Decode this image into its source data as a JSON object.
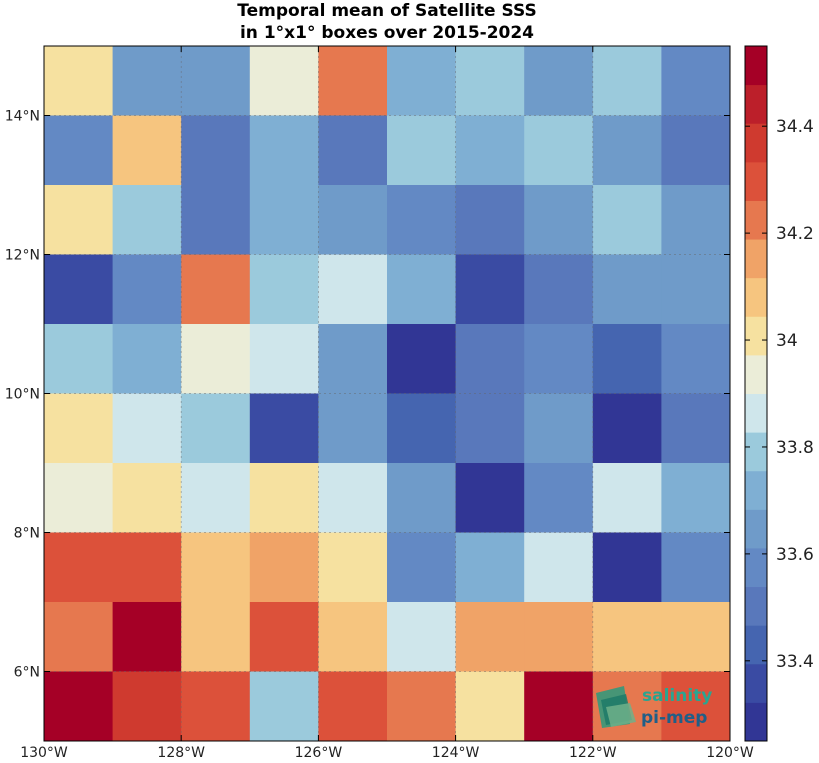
{
  "chart_data": {
    "type": "heatmap",
    "title_lines": [
      "Temporal mean of Satellite SSS",
      "in 1°x1° boxes over 2015-2024"
    ],
    "x_range": [
      -130,
      -120
    ],
    "y_range": [
      5,
      15
    ],
    "x_ticks": [
      {
        "value": -130,
        "label": "130°W"
      },
      {
        "value": -128,
        "label": "128°W"
      },
      {
        "value": -126,
        "label": "126°W"
      },
      {
        "value": -124,
        "label": "124°W"
      },
      {
        "value": -122,
        "label": "122°W"
      },
      {
        "value": -120,
        "label": "120°W"
      }
    ],
    "y_ticks": [
      {
        "value": 6,
        "label": "6°N"
      },
      {
        "value": 8,
        "label": "8°N"
      },
      {
        "value": 10,
        "label": "10°N"
      },
      {
        "value": 12,
        "label": "12°N"
      },
      {
        "value": 14,
        "label": "14°N"
      }
    ],
    "grid": true,
    "lon_centers": [
      -129.5,
      -128.5,
      -127.5,
      -126.5,
      -125.5,
      -124.5,
      -123.5,
      -122.5,
      -121.5,
      -120.5
    ],
    "lat_centers": [
      14.5,
      13.5,
      12.5,
      11.5,
      10.5,
      9.5,
      8.5,
      7.5,
      6.5,
      5.5
    ],
    "values": [
      [
        34.03,
        33.62,
        33.67,
        33.96,
        34.22,
        33.71,
        33.77,
        33.67,
        33.77,
        33.57
      ],
      [
        33.58,
        34.08,
        33.52,
        33.71,
        33.52,
        33.77,
        33.71,
        33.77,
        33.67,
        33.52
      ],
      [
        34.03,
        33.77,
        33.47,
        33.71,
        33.67,
        33.57,
        33.47,
        33.67,
        33.77,
        33.67
      ],
      [
        33.38,
        33.57,
        34.22,
        33.77,
        33.87,
        33.71,
        33.38,
        33.47,
        33.67,
        33.67
      ],
      [
        33.77,
        33.71,
        33.96,
        33.87,
        33.67,
        33.28,
        33.47,
        33.57,
        33.42,
        33.58
      ],
      [
        34.03,
        33.87,
        33.77,
        33.38,
        33.67,
        33.42,
        33.47,
        33.67,
        33.28,
        33.47
      ],
      [
        33.96,
        34.03,
        33.87,
        34.03,
        33.87,
        33.62,
        33.28,
        33.57,
        33.87,
        33.71
      ],
      [
        34.27,
        34.33,
        34.08,
        34.17,
        34.03,
        33.57,
        33.71,
        33.87,
        33.28,
        33.57
      ],
      [
        34.22,
        34.48,
        34.08,
        34.33,
        34.08,
        33.87,
        34.13,
        34.13,
        34.08,
        34.08
      ],
      [
        34.48,
        34.38,
        34.27,
        33.77,
        34.33,
        34.22,
        34.03,
        34.48,
        34.22,
        34.27
      ]
    ],
    "colorbar": {
      "range": [
        33.25,
        34.55
      ],
      "ticks": [
        33.4,
        33.6,
        33.8,
        34,
        34.2,
        34.4
      ],
      "tick_labels": [
        "33.4",
        "33.6",
        "33.8",
        "34",
        "34.2",
        "34.4"
      ],
      "colors": [
        "#313695",
        "#3a4ba3",
        "#4565b0",
        "#5978bb",
        "#6389c4",
        "#6f9bc9",
        "#7fafd3",
        "#9bcadc",
        "#cfe6eb",
        "#ebedd8",
        "#f6e1a0",
        "#f6c57f",
        "#f0a367",
        "#e6784f",
        "#dc513a",
        "#cf3a2f",
        "#bc1f2a",
        "#a50026"
      ]
    }
  },
  "logo": {
    "line1": "salinity",
    "line2": "pi-mep"
  }
}
